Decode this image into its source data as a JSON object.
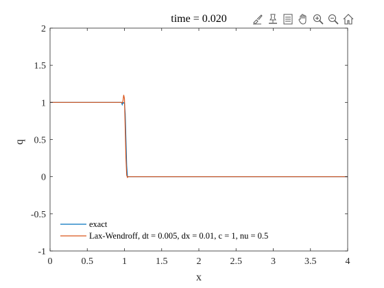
{
  "chart_data": {
    "type": "line",
    "title": "time = 0.020",
    "xlabel": "x",
    "ylabel": "q",
    "xlim": [
      0,
      4
    ],
    "ylim": [
      -1,
      2
    ],
    "xticks": [
      "0",
      "0.5",
      "1",
      "1.5",
      "2",
      "2.5",
      "3",
      "3.5",
      "4"
    ],
    "yticks": [
      "-1",
      "-0.5",
      "0",
      "0.5",
      "1",
      "1.5",
      "2"
    ],
    "grid": false,
    "legend": "bottom-left",
    "series": [
      {
        "name": "exact",
        "color": "#0072BD",
        "x": [
          0,
          0.96,
          0.97,
          0.98,
          0.99,
          1.0,
          1.01,
          1.02,
          1.03,
          1.04,
          4.0
        ],
        "y": [
          1,
          1,
          0.97,
          1.0,
          0.99,
          1.0,
          0.85,
          0.5,
          0.15,
          0.0,
          0.0
        ]
      },
      {
        "name": "Lax-Wendroff, dt = 0.005, dx = 0.01, c = 1, nu = 0.5",
        "color": "#D95319",
        "x": [
          0,
          0.96,
          0.97,
          0.98,
          0.99,
          1.0,
          1.01,
          1.02,
          1.03,
          1.04,
          1.05,
          4.0
        ],
        "y": [
          1,
          1,
          0.99,
          1.02,
          1.1,
          1.05,
          0.65,
          0.25,
          0.02,
          -0.01,
          0.0,
          0.0
        ]
      }
    ]
  },
  "toolbar": {
    "icons": [
      "brush-icon",
      "datatip-icon",
      "legend-toggle-icon",
      "pan-icon",
      "zoom-in-icon",
      "zoom-out-icon",
      "home-icon"
    ]
  }
}
